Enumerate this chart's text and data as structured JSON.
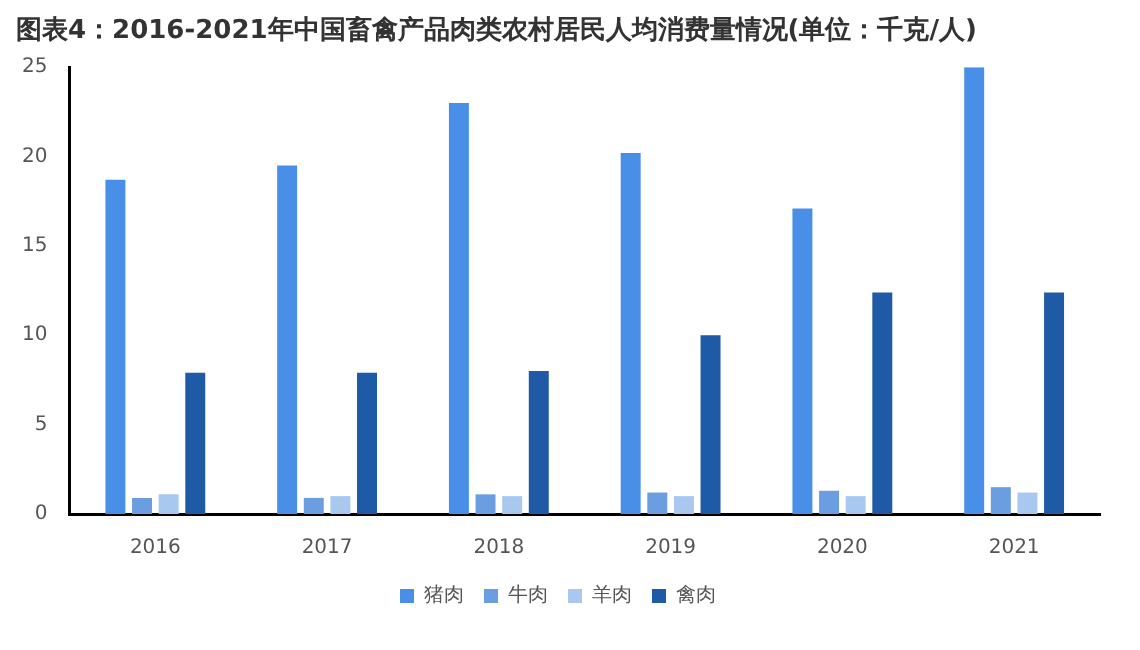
{
  "chart_data": {
    "type": "bar",
    "title": "图表4：2016-2021年中国畜禽产品肉类农村居民人均消费量情况(单位：千克/人)",
    "categories": [
      "2016",
      "2017",
      "2018",
      "2019",
      "2020",
      "2021"
    ],
    "series": [
      {
        "name": "猪肉",
        "color": "#4a8fe7",
        "values": [
          18.7,
          19.5,
          23.0,
          20.2,
          17.1,
          25.0
        ]
      },
      {
        "name": "牛肉",
        "color": "#6b9ee0",
        "values": [
          0.9,
          0.9,
          1.1,
          1.2,
          1.3,
          1.5
        ]
      },
      {
        "name": "羊肉",
        "color": "#a9c8f0",
        "values": [
          1.1,
          1.0,
          1.0,
          1.0,
          1.0,
          1.2
        ]
      },
      {
        "name": "禽肉",
        "color": "#1f5aa6",
        "values": [
          7.9,
          7.9,
          8.0,
          10.0,
          12.4,
          12.4
        ]
      }
    ],
    "ylim": [
      0,
      25
    ],
    "yticks": [
      0,
      5,
      10,
      15,
      20,
      25
    ],
    "grid": false,
    "legend": "bottom"
  }
}
